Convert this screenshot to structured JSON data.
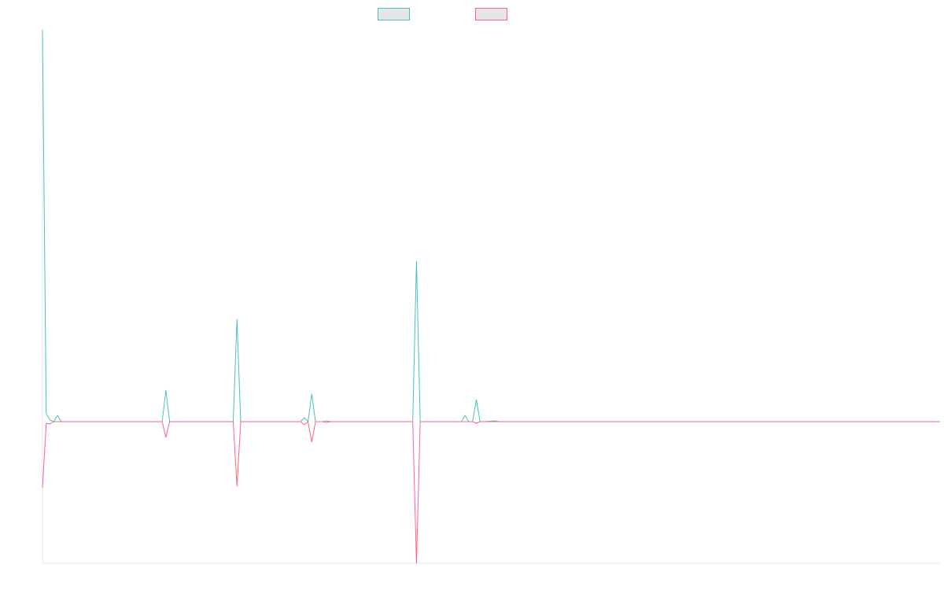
{
  "chart_data": {
    "type": "line",
    "title": "",
    "xlabel": "",
    "ylabel": "",
    "grid": false,
    "legend": "top-center",
    "ylim": [
      -180,
      500
    ],
    "xlim": [
      0,
      240
    ],
    "series": [
      {
        "name": "",
        "color": "#4bc0c0",
        "legend_fill": "#e6e6e6",
        "points": [
          [
            0,
            498
          ],
          [
            1,
            10
          ],
          [
            2,
            2
          ],
          [
            3,
            0
          ],
          [
            4,
            8
          ],
          [
            5,
            0
          ],
          [
            6,
            0
          ],
          [
            30,
            0
          ],
          [
            32,
            0
          ],
          [
            33,
            40
          ],
          [
            34,
            0
          ],
          [
            36,
            0
          ],
          [
            50,
            0
          ],
          [
            51,
            0
          ],
          [
            52,
            130
          ],
          [
            53,
            0
          ],
          [
            54,
            0
          ],
          [
            69,
            0
          ],
          [
            70,
            5
          ],
          [
            71,
            0
          ],
          [
            72,
            35
          ],
          [
            73,
            0
          ],
          [
            75,
            0
          ],
          [
            76,
            1
          ],
          [
            77,
            0
          ],
          [
            98,
            0
          ],
          [
            99,
            0
          ],
          [
            100,
            204
          ],
          [
            101,
            0
          ],
          [
            102,
            0
          ],
          [
            112,
            0
          ],
          [
            113,
            8
          ],
          [
            114,
            0
          ],
          [
            115,
            0
          ],
          [
            116,
            28
          ],
          [
            117,
            0
          ],
          [
            118,
            0
          ],
          [
            121,
            1
          ],
          [
            122,
            0
          ],
          [
            240,
            0
          ]
        ]
      },
      {
        "name": "",
        "color": "#ff6384",
        "legend_fill": "#e6e6e6",
        "points": [
          [
            0,
            -84
          ],
          [
            1,
            -2
          ],
          [
            2,
            -3
          ],
          [
            3,
            0
          ],
          [
            6,
            0
          ],
          [
            30,
            0
          ],
          [
            32,
            0
          ],
          [
            33,
            -20
          ],
          [
            34,
            0
          ],
          [
            36,
            0
          ],
          [
            50,
            0
          ],
          [
            51,
            0
          ],
          [
            52,
            -82
          ],
          [
            53,
            0
          ],
          [
            54,
            0
          ],
          [
            69,
            0
          ],
          [
            70,
            -4
          ],
          [
            71,
            0
          ],
          [
            72,
            -26
          ],
          [
            73,
            0
          ],
          [
            75,
            0
          ],
          [
            76,
            -1
          ],
          [
            77,
            0
          ],
          [
            98,
            0
          ],
          [
            99,
            0
          ],
          [
            100,
            -180
          ],
          [
            101,
            0
          ],
          [
            102,
            0
          ],
          [
            112,
            0
          ],
          [
            115,
            0
          ],
          [
            116,
            -2
          ],
          [
            117,
            0
          ],
          [
            118,
            0
          ],
          [
            121,
            0
          ],
          [
            240,
            0
          ]
        ]
      }
    ]
  }
}
